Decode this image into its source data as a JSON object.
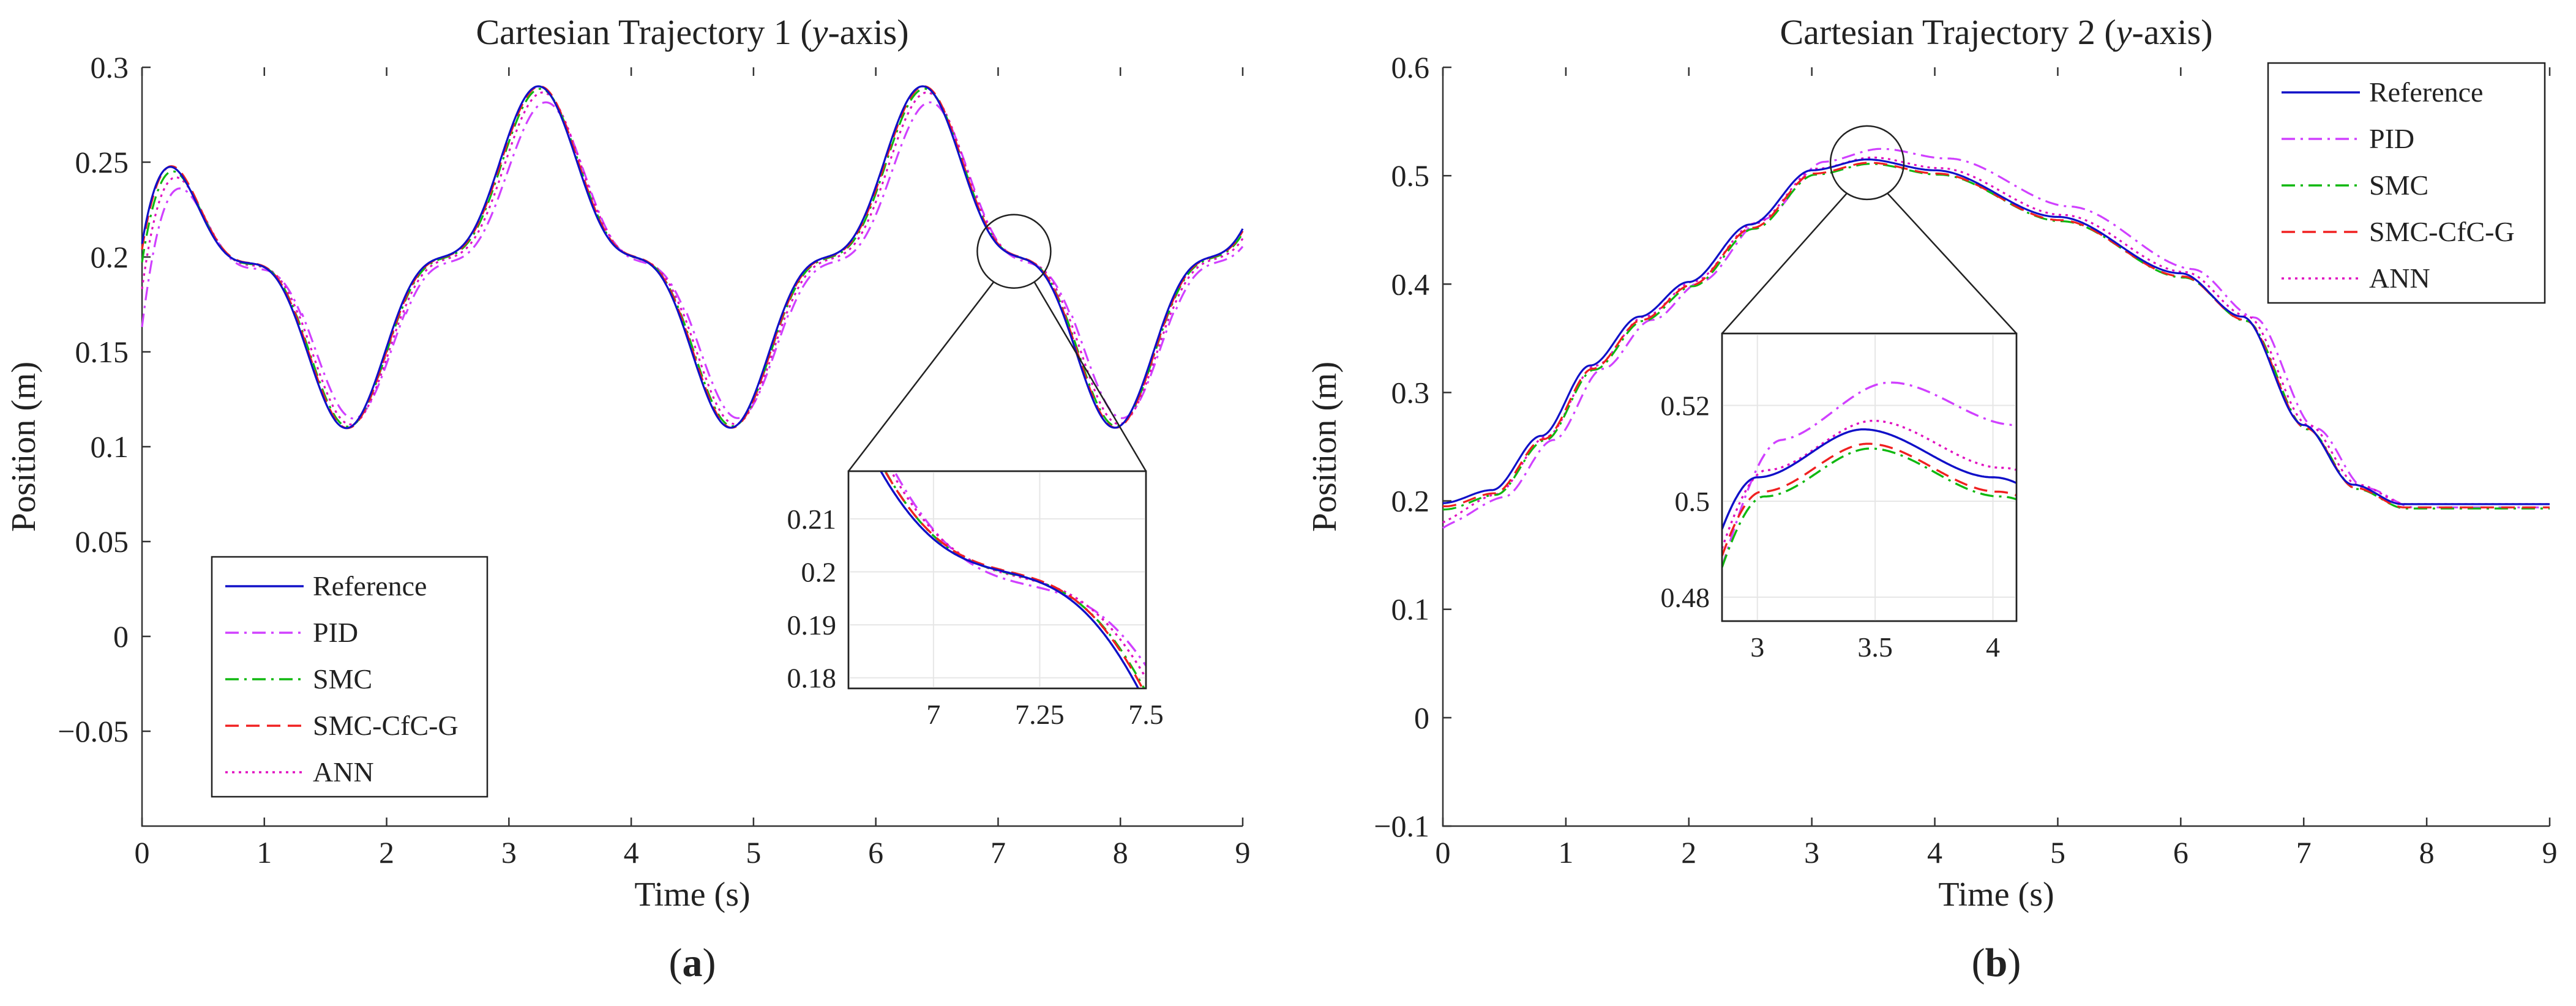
{
  "chart_data": [
    {
      "type": "line",
      "title": "Cartesian Trajectory 1 (y-axis)",
      "title_prefix": "Cartesian Trajectory 1 (",
      "title_var": "y",
      "title_suffix": "-axis)",
      "xlabel": "Time (s)",
      "ylabel": "Position (m)",
      "panel_label": "a",
      "xlim": [
        0,
        9
      ],
      "ylim": [
        -0.1,
        0.3
      ],
      "xticks": [
        0,
        1,
        2,
        3,
        4,
        5,
        6,
        7,
        8,
        9
      ],
      "xtick_labels": [
        "0",
        "1",
        "2",
        "3",
        "4",
        "5",
        "6",
        "7",
        "8",
        "9"
      ],
      "yticks": [
        -0.05,
        0,
        0.05,
        0.1,
        0.15,
        0.2,
        0.25,
        0.3
      ],
      "ytick_labels": [
        "−0.05",
        "0",
        "0.05",
        "0.1",
        "0.15",
        "0.2",
        "0.25",
        "0.3"
      ],
      "legend_position": "bottom-left",
      "reference": {
        "kind": "trajectory1"
      },
      "series": [
        {
          "name": "Reference",
          "color": "#1010c8",
          "dash": "solid",
          "scale": 1.0,
          "offset": 0.0,
          "lag": 0.0,
          "start": 0.207
        },
        {
          "name": "PID",
          "color": "#d040ff",
          "dash": "dashdot",
          "scale": 0.935,
          "offset": 0.0,
          "lag": 0.06,
          "start": 0.178
        },
        {
          "name": "SMC",
          "color": "#10b810",
          "dash": "dashdot",
          "scale": 0.99,
          "offset": 0.0,
          "lag": 0.015,
          "start": 0.2
        },
        {
          "name": "SMC-CfC-G",
          "color": "#f02020",
          "dash": "dashed",
          "scale": 1.0,
          "offset": 0.0,
          "lag": 0.01,
          "start": 0.205
        },
        {
          "name": "ANN",
          "color": "#e010c0",
          "dash": "dotted",
          "scale": 0.975,
          "offset": 0.0,
          "lag": 0.035,
          "start": 0.19
        }
      ],
      "inset": {
        "xlim": [
          6.8,
          7.5
        ],
        "ylim": [
          0.178,
          0.219
        ],
        "xticks": [
          7,
          7.25,
          7.5
        ],
        "xtick_labels": [
          "7",
          "7.25",
          "7.5"
        ],
        "yticks": [
          0.18,
          0.19,
          0.2,
          0.21
        ],
        "ytick_labels": [
          "0.18",
          "0.19",
          "0.2",
          "0.21"
        ],
        "zoom_center": [
          7.13,
          0.203
        ]
      }
    },
    {
      "type": "line",
      "title": "Cartesian Trajectory 2 (y-axis)",
      "title_prefix": "Cartesian Trajectory 2 (",
      "title_var": "y",
      "title_suffix": "-axis)",
      "xlabel": "Time (s)",
      "ylabel": "Position (m)",
      "panel_label": "b",
      "xlim": [
        0,
        9
      ],
      "ylim": [
        -0.1,
        0.6
      ],
      "xticks": [
        0,
        1,
        2,
        3,
        4,
        5,
        6,
        7,
        8,
        9
      ],
      "xtick_labels": [
        "0",
        "1",
        "2",
        "3",
        "4",
        "5",
        "6",
        "7",
        "8",
        "9"
      ],
      "yticks": [
        -0.1,
        0,
        0.1,
        0.2,
        0.3,
        0.4,
        0.5,
        0.6
      ],
      "ytick_labels": [
        "−0.1",
        "0",
        "0.1",
        "0.2",
        "0.3",
        "0.4",
        "0.5",
        "0.6"
      ],
      "legend_position": "top-right",
      "reference": {
        "kind": "points",
        "x": [
          0,
          0.4,
          0.8,
          1.2,
          1.6,
          2.0,
          2.5,
          3.0,
          3.45,
          4.0,
          5.0,
          6.0,
          6.5,
          7.0,
          7.4,
          7.8,
          9.0
        ],
        "y": [
          0.198,
          0.21,
          0.26,
          0.325,
          0.37,
          0.402,
          0.455,
          0.505,
          0.515,
          0.505,
          0.462,
          0.41,
          0.37,
          0.27,
          0.215,
          0.197,
          0.197
        ]
      },
      "series": [
        {
          "name": "Reference",
          "color": "#1010c8",
          "dash": "solid",
          "lag": 0.0,
          "offset": 0.0,
          "bump": 0.0,
          "start": 0.198
        },
        {
          "name": "PID",
          "color": "#d040ff",
          "dash": "dashdot",
          "lag": 0.1,
          "offset": -0.003,
          "bump": 0.014,
          "start": 0.178
        },
        {
          "name": "SMC",
          "color": "#10b810",
          "dash": "dashdot",
          "lag": 0.03,
          "offset": -0.004,
          "bump": 0.0,
          "start": 0.196
        },
        {
          "name": "SMC-CfC-G",
          "color": "#f02020",
          "dash": "dashed",
          "lag": 0.02,
          "offset": -0.003,
          "bump": 0.0,
          "start": 0.198
        },
        {
          "name": "ANN",
          "color": "#e010c0",
          "dash": "dotted",
          "lag": 0.04,
          "offset": 0.0,
          "bump": 0.002,
          "start": 0.18
        }
      ],
      "inset": {
        "xlim": [
          2.85,
          4.1
        ],
        "ylim": [
          0.475,
          0.535
        ],
        "xticks": [
          3,
          3.5,
          4
        ],
        "xtick_labels": [
          "3",
          "3.5",
          "4"
        ],
        "yticks": [
          0.48,
          0.5,
          0.52
        ],
        "ytick_labels": [
          "0.48",
          "0.5",
          "0.52"
        ],
        "zoom_center": [
          3.45,
          0.512
        ]
      }
    }
  ]
}
